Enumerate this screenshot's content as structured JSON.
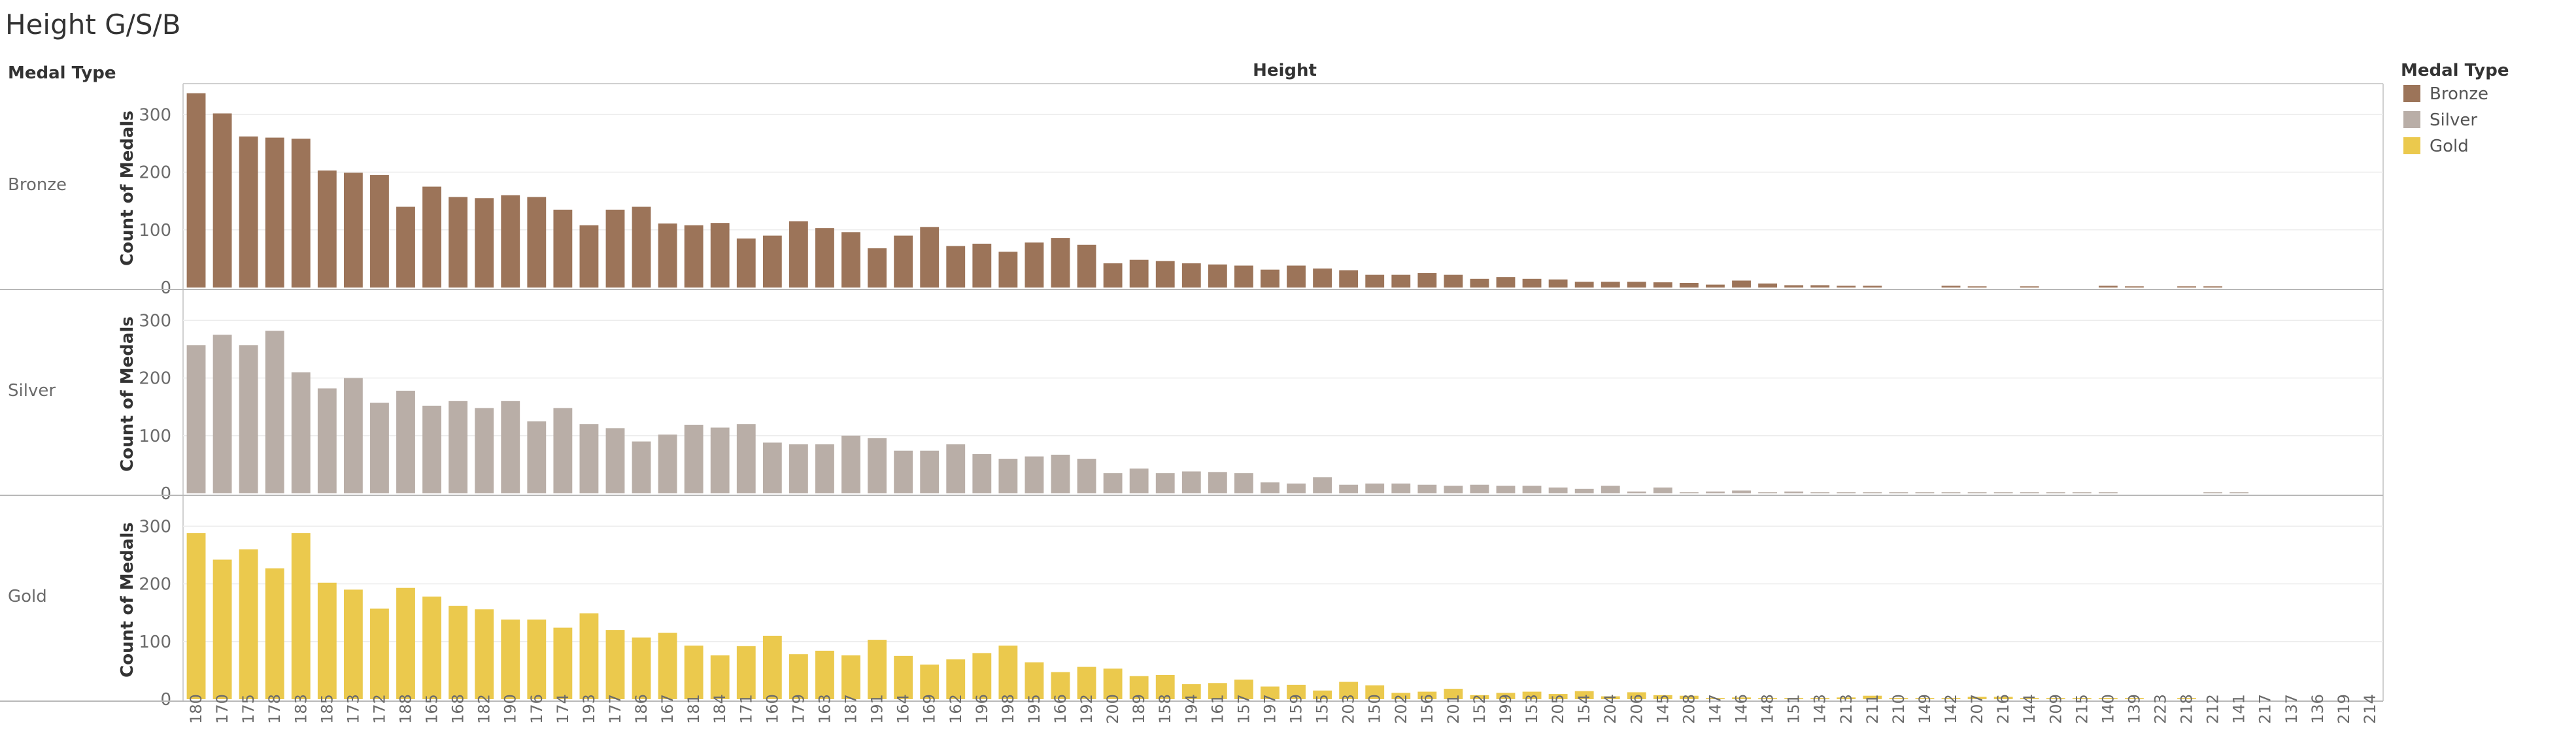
{
  "chart_data": {
    "type": "bar",
    "title": "Height G/S/B",
    "row_header": "Medal Type",
    "column_header": "Height",
    "ylabel": "Count of Medals",
    "ylim": [
      0,
      340
    ],
    "yticks": [
      0,
      100,
      200,
      300
    ],
    "gridlines": true,
    "legend": {
      "title": "Medal Type",
      "placement": "right",
      "items": [
        {
          "label": "Bronze",
          "color": "#9c7459"
        },
        {
          "label": "Silver",
          "color": "#b9aea7"
        },
        {
          "label": "Gold",
          "color": "#ebc94d"
        }
      ]
    },
    "categories": [
      "180",
      "170",
      "175",
      "178",
      "183",
      "185",
      "173",
      "172",
      "188",
      "165",
      "168",
      "182",
      "190",
      "176",
      "174",
      "193",
      "177",
      "186",
      "167",
      "181",
      "184",
      "171",
      "160",
      "179",
      "163",
      "187",
      "191",
      "164",
      "169",
      "162",
      "196",
      "198",
      "195",
      "166",
      "192",
      "200",
      "189",
      "158",
      "194",
      "161",
      "157",
      "197",
      "159",
      "155",
      "203",
      "150",
      "202",
      "156",
      "201",
      "152",
      "199",
      "153",
      "205",
      "154",
      "204",
      "206",
      "145",
      "208",
      "147",
      "146",
      "148",
      "151",
      "143",
      "213",
      "211",
      "210",
      "149",
      "142",
      "207",
      "216",
      "144",
      "209",
      "215",
      "140",
      "139",
      "223",
      "218",
      "212",
      "141",
      "217",
      "137",
      "136",
      "219",
      "214"
    ],
    "series": [
      {
        "name": "Bronze",
        "color": "#9c7459",
        "values": [
          337,
          302,
          262,
          260,
          258,
          203,
          199,
          195,
          140,
          175,
          157,
          155,
          160,
          157,
          135,
          108,
          135,
          140,
          111,
          108,
          112,
          85,
          90,
          115,
          103,
          96,
          68,
          90,
          105,
          72,
          76,
          62,
          78,
          86,
          74,
          42,
          48,
          46,
          42,
          40,
          38,
          31,
          38,
          33,
          30,
          22,
          22,
          25,
          22,
          15,
          18,
          15,
          14,
          10,
          10,
          10,
          9,
          8,
          5,
          12,
          7,
          4,
          4,
          3,
          3,
          0,
          0,
          3,
          2,
          0,
          2,
          0,
          0,
          3,
          2,
          0,
          2,
          2,
          0,
          0,
          0,
          0,
          0,
          0
        ]
      },
      {
        "name": "Silver",
        "color": "#b9aea7",
        "values": [
          257,
          275,
          257,
          282,
          210,
          182,
          200,
          157,
          178,
          152,
          160,
          148,
          160,
          125,
          148,
          120,
          113,
          90,
          102,
          119,
          114,
          120,
          88,
          85,
          85,
          100,
          96,
          74,
          74,
          85,
          68,
          60,
          64,
          67,
          60,
          35,
          43,
          35,
          38,
          37,
          35,
          19,
          17,
          28,
          15,
          17,
          17,
          15,
          13,
          15,
          13,
          13,
          10,
          8,
          13,
          3,
          10,
          2,
          3,
          5,
          2,
          3,
          2,
          2,
          2,
          2,
          2,
          2,
          2,
          2,
          2,
          2,
          2,
          2,
          0,
          0,
          0,
          2,
          2,
          0,
          0,
          0,
          0,
          0
        ]
      },
      {
        "name": "Gold",
        "color": "#ebc94d",
        "values": [
          288,
          242,
          260,
          227,
          288,
          202,
          190,
          157,
          193,
          178,
          162,
          156,
          138,
          138,
          124,
          149,
          120,
          107,
          115,
          93,
          76,
          92,
          110,
          78,
          84,
          76,
          103,
          75,
          60,
          69,
          80,
          93,
          64,
          47,
          56,
          53,
          40,
          42,
          26,
          28,
          34,
          22,
          25,
          15,
          30,
          24,
          11,
          13,
          18,
          7,
          11,
          13,
          9,
          14,
          5,
          12,
          7,
          6,
          2,
          3,
          2,
          2,
          2,
          3,
          6,
          2,
          2,
          2,
          4,
          4,
          2,
          2,
          2,
          2,
          2,
          0,
          2,
          0,
          0,
          0,
          0,
          0,
          0,
          0
        ]
      }
    ]
  }
}
